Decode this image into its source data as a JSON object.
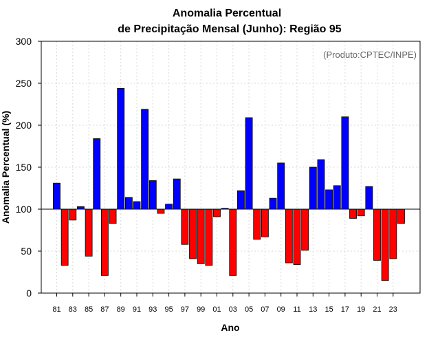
{
  "chart_data": {
    "type": "bar",
    "title_line1": "Anomalia Percentual",
    "title_line2": "de Precipitação Mensal (Junho): Região 95",
    "xlabel": "Ano",
    "ylabel": "Anomalia Percentual (%)",
    "annotation": "(Produto:CPTEC/INPE)",
    "ylim": [
      0,
      300
    ],
    "yticks": [
      0,
      50,
      100,
      150,
      200,
      250,
      300
    ],
    "baseline": 100,
    "colors": {
      "above": "#0000ff",
      "below": "#ff0000",
      "edge": "#000000"
    },
    "categories": [
      "81",
      "82",
      "83",
      "84",
      "85",
      "86",
      "87",
      "88",
      "89",
      "90",
      "91",
      "92",
      "93",
      "94",
      "95",
      "96",
      "97",
      "98",
      "99",
      "00",
      "01",
      "02",
      "03",
      "04",
      "05",
      "06",
      "07",
      "08",
      "09",
      "10",
      "11",
      "12",
      "13",
      "14",
      "15",
      "16",
      "17",
      "18",
      "19",
      "20",
      "21",
      "22",
      "23",
      "24"
    ],
    "xtick_labels": [
      "81",
      "83",
      "85",
      "87",
      "89",
      "91",
      "93",
      "95",
      "97",
      "99",
      "01",
      "03",
      "05",
      "07",
      "09",
      "11",
      "13",
      "15",
      "17",
      "19",
      "21",
      "23"
    ],
    "values": [
      131,
      33,
      87,
      103,
      44,
      184,
      21,
      83,
      244,
      114,
      109,
      219,
      134,
      95,
      106,
      136,
      58,
      41,
      35,
      33,
      91,
      101,
      21,
      122,
      209,
      64,
      67,
      113,
      155,
      36,
      34,
      51,
      150,
      159,
      123,
      128,
      210,
      89,
      92,
      127,
      39,
      15,
      41,
      83
    ]
  }
}
